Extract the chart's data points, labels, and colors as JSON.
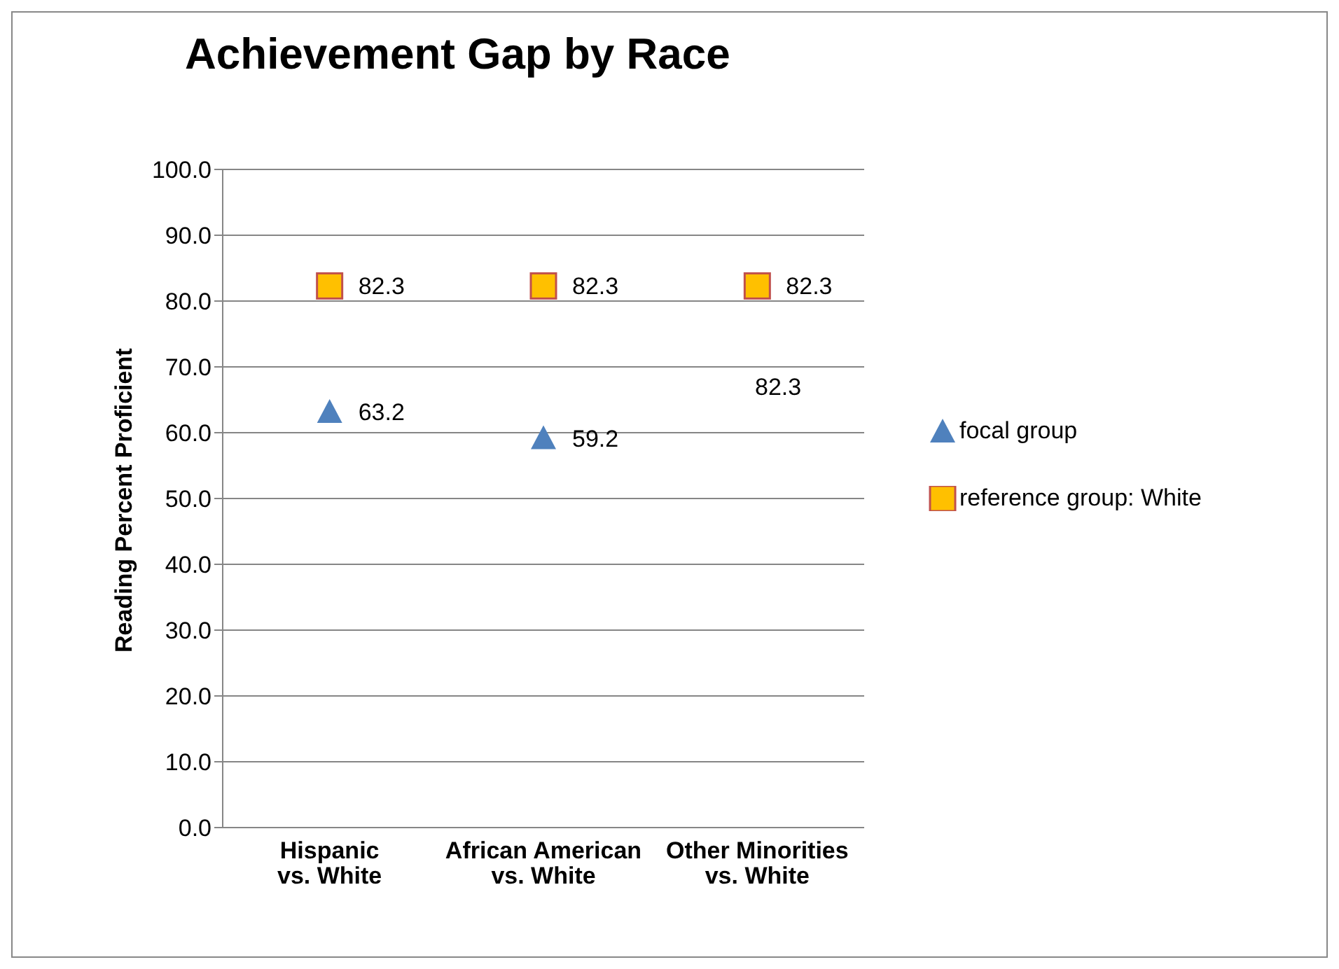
{
  "chart_data": {
    "type": "scatter",
    "title": "Achievement Gap by Race",
    "ylabel": "Reading Percent Proficient",
    "categories": [
      "Hispanic\nvs. White",
      "African American\nvs. White",
      "Other Minorities\nvs. White"
    ],
    "series": [
      {
        "name": "focal group",
        "color": "#4f81bd",
        "marker": "triangle",
        "values": [
          63.2,
          59.2,
          null
        ]
      },
      {
        "name": "reference group: White",
        "color": "#ffc000",
        "marker": "square",
        "values": [
          82.3,
          82.3,
          82.3
        ]
      }
    ],
    "annotations": [
      "82.3"
    ],
    "ylim": [
      0,
      100
    ],
    "yticks": [
      {
        "value": 0,
        "label": "0.0"
      },
      {
        "value": 10,
        "label": "10.0"
      },
      {
        "value": 20,
        "label": "20.0"
      },
      {
        "value": 30,
        "label": "30.0"
      },
      {
        "value": 40,
        "label": "40.0"
      },
      {
        "value": 50,
        "label": "50.0"
      },
      {
        "value": 60,
        "label": "60.0"
      },
      {
        "value": 70,
        "label": "70.0"
      },
      {
        "value": 80,
        "label": "80.0"
      },
      {
        "value": 90,
        "label": "90.0"
      },
      {
        "value": 100,
        "label": "100.0"
      }
    ],
    "grid": "y",
    "data_labels": true,
    "legend": "right"
  }
}
